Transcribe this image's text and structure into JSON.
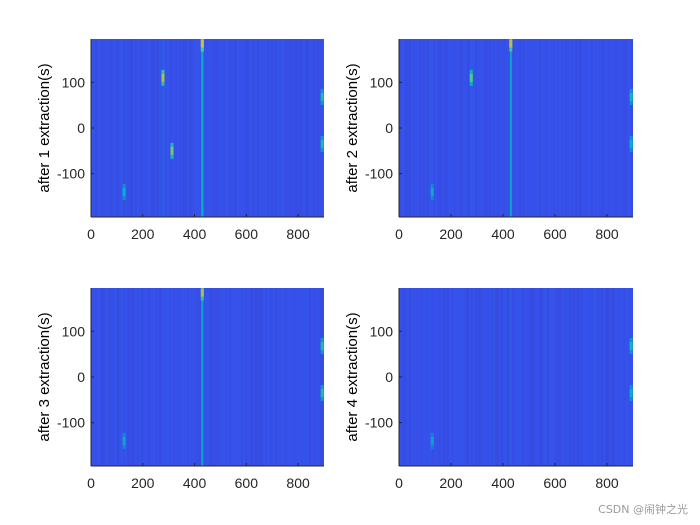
{
  "chart_data": [
    {
      "type": "heatmap",
      "ylabel": "after 1 extraction(s)",
      "xlim": [
        0,
        900
      ],
      "ylim": [
        -195,
        195
      ],
      "xticks": [
        "0",
        "200",
        "400",
        "600",
        "800"
      ],
      "yticks": [
        "100",
        "0",
        "-100"
      ],
      "colormap": "parula",
      "background_level": 0.12,
      "vertical_lines": [
        {
          "x": 430,
          "intensity": 0.45
        },
        {
          "x": 280,
          "intensity": 0.18
        },
        {
          "x": 120,
          "intensity": 0.16
        }
      ],
      "hotspots": [
        {
          "x": 430,
          "y": 185,
          "intensity": 0.78
        },
        {
          "x": 278,
          "y": 110,
          "intensity": 0.72
        },
        {
          "x": 313,
          "y": -50,
          "intensity": 0.65
        },
        {
          "x": 128,
          "y": -140,
          "intensity": 0.45
        },
        {
          "x": 893,
          "y": 68,
          "intensity": 0.5
        },
        {
          "x": 893,
          "y": -35,
          "intensity": 0.5
        }
      ]
    },
    {
      "type": "heatmap",
      "ylabel": "after 2 extraction(s)",
      "xlim": [
        0,
        900
      ],
      "ylim": [
        -195,
        195
      ],
      "xticks": [
        "0",
        "200",
        "400",
        "600",
        "800"
      ],
      "yticks": [
        "100",
        "0",
        "-100"
      ],
      "colormap": "parula",
      "background_level": 0.12,
      "vertical_lines": [
        {
          "x": 430,
          "intensity": 0.42
        },
        {
          "x": 280,
          "intensity": 0.16
        },
        {
          "x": 120,
          "intensity": 0.15
        }
      ],
      "hotspots": [
        {
          "x": 430,
          "y": 185,
          "intensity": 0.75
        },
        {
          "x": 278,
          "y": 110,
          "intensity": 0.6
        },
        {
          "x": 128,
          "y": -140,
          "intensity": 0.42
        },
        {
          "x": 893,
          "y": 68,
          "intensity": 0.48
        },
        {
          "x": 893,
          "y": -35,
          "intensity": 0.45
        }
      ]
    },
    {
      "type": "heatmap",
      "ylabel": "after 3 extraction(s)",
      "xlim": [
        0,
        900
      ],
      "ylim": [
        -195,
        195
      ],
      "xticks": [
        "0",
        "200",
        "400",
        "600",
        "800"
      ],
      "yticks": [
        "100",
        "0",
        "-100"
      ],
      "colormap": "parula",
      "background_level": 0.12,
      "vertical_lines": [
        {
          "x": 430,
          "intensity": 0.42
        },
        {
          "x": 120,
          "intensity": 0.14
        }
      ],
      "hotspots": [
        {
          "x": 430,
          "y": 185,
          "intensity": 0.72
        },
        {
          "x": 128,
          "y": -140,
          "intensity": 0.42
        },
        {
          "x": 893,
          "y": 68,
          "intensity": 0.5
        },
        {
          "x": 893,
          "y": -35,
          "intensity": 0.5
        }
      ]
    },
    {
      "type": "heatmap",
      "ylabel": "after 4 extraction(s)",
      "xlim": [
        0,
        900
      ],
      "ylim": [
        -195,
        195
      ],
      "xticks": [
        "0",
        "200",
        "400",
        "600",
        "800"
      ],
      "yticks": [
        "100",
        "0",
        "-100"
      ],
      "colormap": "parula",
      "background_level": 0.12,
      "vertical_lines": [
        {
          "x": 430,
          "intensity": 0.16
        },
        {
          "x": 120,
          "intensity": 0.14
        }
      ],
      "hotspots": [
        {
          "x": 128,
          "y": -140,
          "intensity": 0.4
        },
        {
          "x": 893,
          "y": 68,
          "intensity": 0.48
        },
        {
          "x": 893,
          "y": -35,
          "intensity": 0.45
        }
      ]
    }
  ],
  "watermark": "CSDN @闹钟之光",
  "colors": {
    "axis": "#262626",
    "background": "#ffffff"
  }
}
